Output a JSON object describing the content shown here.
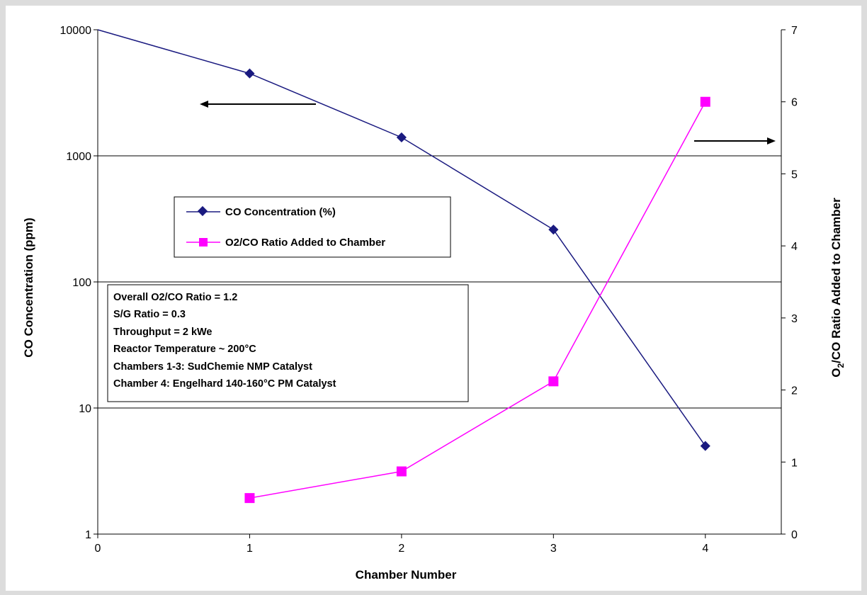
{
  "chart_data": {
    "type": "line",
    "x_axis": {
      "label": "Chamber Number",
      "range": [
        0,
        4.5
      ],
      "ticks": [
        "0",
        "1",
        "2",
        "3",
        "4"
      ]
    },
    "y_left": {
      "label": "CO Concentration (ppm)",
      "scale": "log",
      "range": [
        1,
        10000
      ],
      "ticks": [
        "1",
        "10",
        "100",
        "1000",
        "10000"
      ]
    },
    "y_right": {
      "label_main": "O",
      "label_sub": "2",
      "label_rest": "/CO Ratio Added to Chamber",
      "scale": "linear",
      "range": [
        0,
        7
      ],
      "ticks": [
        "0",
        "1",
        "2",
        "3",
        "4",
        "5",
        "6",
        "7"
      ]
    },
    "grid": "horizontal gridlines at left-axis decades",
    "series": [
      {
        "name": "CO Concentration (%)",
        "axis": "left",
        "marker": "diamond",
        "color": "#1a1a80",
        "x": [
          0,
          1,
          2,
          3,
          4
        ],
        "y": [
          10000,
          4500,
          1400,
          260,
          5
        ],
        "marker_visible": [
          false,
          true,
          true,
          true,
          true
        ]
      },
      {
        "name": "O2/CO Ratio Added to Chamber",
        "axis": "right",
        "marker": "square",
        "color": "#ff00ff",
        "x": [
          1,
          2,
          3,
          4
        ],
        "y": [
          0.5,
          0.87,
          2.12,
          6.0
        ],
        "marker_visible": [
          true,
          true,
          true,
          true
        ]
      }
    ],
    "legend": [
      "CO Concentration (%)",
      "O2/CO Ratio Added to Chamber"
    ],
    "annotation_lines": [
      "Overall O2/CO Ratio = 1.2",
      "S/G Ratio = 0.3",
      "Throughput = 2 kWe",
      "Reactor Temperature ~ 200°C",
      "Chambers 1-3:  SudChemie NMP Catalyst",
      "Chamber 4:  Engelhard 140-160°C PM Catalyst"
    ],
    "arrows": [
      "left-pointing arrow indicating left axis series",
      "right-pointing arrow indicating right axis series"
    ]
  }
}
